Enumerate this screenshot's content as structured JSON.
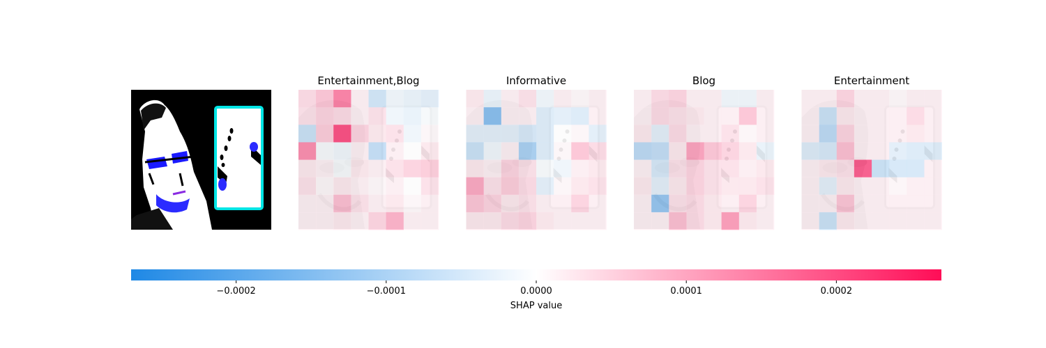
{
  "chart_data": {
    "type": "heatmap",
    "title": "",
    "input_image": {
      "description_note": "",
      "palette": [
        "#000000",
        "#ffffff",
        "#2222ff",
        "#00e5e5"
      ]
    },
    "grid_size": [
      8,
      8
    ],
    "panels": [
      {
        "title": "Entertainment,Blog",
        "values": [
          [
            5e-05,
            8e-05,
            0.00018,
            2e-05,
            -7e-05,
            -2e-05,
            -3e-05,
            -4e-05
          ],
          [
            4e-05,
            6e-05,
            5e-05,
            2e-05,
            4e-05,
            -2e-05,
            -3e-05,
            -1e-05
          ],
          [
            -8e-05,
            7e-05,
            0.00025,
            6e-05,
            3e-05,
            4e-05,
            -2e-05,
            1e-05
          ],
          [
            0.00016,
            -1e-05,
            -2e-05,
            2e-05,
            -9e-05,
            2e-05,
            0.0,
            3e-05
          ],
          [
            3e-05,
            2e-05,
            -1e-05,
            3e-05,
            2e-05,
            4e-05,
            6e-05,
            7e-05
          ],
          [
            4e-05,
            1e-05,
            3e-05,
            2e-05,
            1e-05,
            2e-05,
            0.0,
            4e-05
          ],
          [
            2e-05,
            2e-05,
            9e-05,
            4e-05,
            2e-05,
            3e-05,
            1e-05,
            2e-05
          ],
          [
            2e-05,
            2e-05,
            3e-05,
            2e-05,
            6e-05,
            0.00011,
            2e-05,
            2e-05
          ]
        ]
      },
      {
        "title": "Informative",
        "values": [
          [
            3e-05,
            -3e-05,
            2e-05,
            4e-05,
            -2e-05,
            2e-05,
            1e-05,
            2e-05
          ],
          [
            2e-05,
            -0.00018,
            2e-05,
            2e-05,
            -5e-05,
            -4e-05,
            -5e-05,
            2e-05
          ],
          [
            -4e-05,
            -4e-05,
            -4e-05,
            -6e-05,
            -5e-05,
            0.0,
            1e-05,
            -4e-05
          ],
          [
            -8e-05,
            -2e-05,
            2e-05,
            -0.00013,
            -5e-05,
            1e-05,
            8e-05,
            5e-05
          ],
          [
            3e-05,
            2e-05,
            6e-05,
            4e-05,
            -1e-05,
            -2e-05,
            2e-05,
            3e-05
          ],
          [
            0.00012,
            4e-05,
            7e-05,
            5e-05,
            -4e-05,
            1e-05,
            3e-05,
            4e-05
          ],
          [
            8e-05,
            6e-05,
            3e-05,
            4e-05,
            2e-05,
            2e-05,
            6e-05,
            2e-05
          ],
          [
            3e-05,
            3e-05,
            5e-05,
            6e-05,
            3e-05,
            2e-05,
            2e-05,
            2e-05
          ]
        ]
      },
      {
        "title": "Blog",
        "values": [
          [
            2e-05,
            5e-05,
            6e-05,
            2e-05,
            2e-05,
            -2e-05,
            -2e-05,
            2e-05
          ],
          [
            2e-05,
            5e-05,
            4e-05,
            3e-05,
            2e-05,
            2e-05,
            8e-05,
            2e-05
          ],
          [
            3e-05,
            -4e-05,
            5e-05,
            2e-05,
            2e-05,
            4e-05,
            1e-05,
            2e-05
          ],
          [
            -0.0001,
            -9e-05,
            3e-05,
            0.00013,
            8e-05,
            6e-05,
            3e-05,
            -3e-05
          ],
          [
            2e-05,
            -6e-05,
            4e-05,
            6e-05,
            4e-05,
            4e-05,
            2e-05,
            3e-05
          ],
          [
            3e-05,
            -4e-05,
            3e-05,
            6e-05,
            4e-05,
            3e-05,
            3e-05,
            4e-05
          ],
          [
            2e-05,
            -0.00016,
            4e-05,
            5e-05,
            3e-05,
            2e-05,
            6e-05,
            2e-05
          ],
          [
            2e-05,
            2e-05,
            9e-05,
            5e-05,
            3e-05,
            0.00014,
            3e-05,
            2e-05
          ]
        ]
      },
      {
        "title": "Entertainment",
        "values": [
          [
            2e-05,
            2e-05,
            6e-05,
            2e-05,
            2e-05,
            1e-05,
            2e-05,
            2e-05
          ],
          [
            2e-05,
            -8e-05,
            3e-05,
            2e-05,
            2e-05,
            2e-05,
            5e-05,
            2e-05
          ],
          [
            2e-05,
            -0.0001,
            6e-05,
            2e-05,
            2e-05,
            2e-05,
            3e-05,
            2e-05
          ],
          [
            -5e-05,
            -6e-05,
            9e-05,
            2e-05,
            2e-05,
            -4e-05,
            -5e-05,
            -5e-05
          ],
          [
            2e-05,
            3e-05,
            4e-05,
            0.00023,
            -8e-05,
            -6e-05,
            -6e-05,
            2e-05
          ],
          [
            2e-05,
            -4e-05,
            3e-05,
            2e-05,
            2e-05,
            1e-05,
            2e-05,
            2e-05
          ],
          [
            2e-05,
            2e-05,
            8e-05,
            2e-05,
            2e-05,
            2e-05,
            2e-05,
            2e-05
          ],
          [
            2e-05,
            -8e-05,
            3e-05,
            2e-05,
            2e-05,
            2e-05,
            2e-05,
            2e-05
          ]
        ]
      }
    ],
    "colorbar": {
      "label": "SHAP value",
      "range": [
        -0.00027,
        0.00027
      ],
      "ticks": [
        -0.0002,
        -0.0001,
        0.0,
        0.0001,
        0.0002
      ],
      "tick_labels": [
        "−0.0002",
        "−0.0001",
        "0.0000",
        "0.0001",
        "0.0002"
      ],
      "negative_color": "#1e88e5",
      "positive_color": "#ff0d57",
      "zero_color": "#ffffff",
      "orientation": "horizontal"
    }
  }
}
